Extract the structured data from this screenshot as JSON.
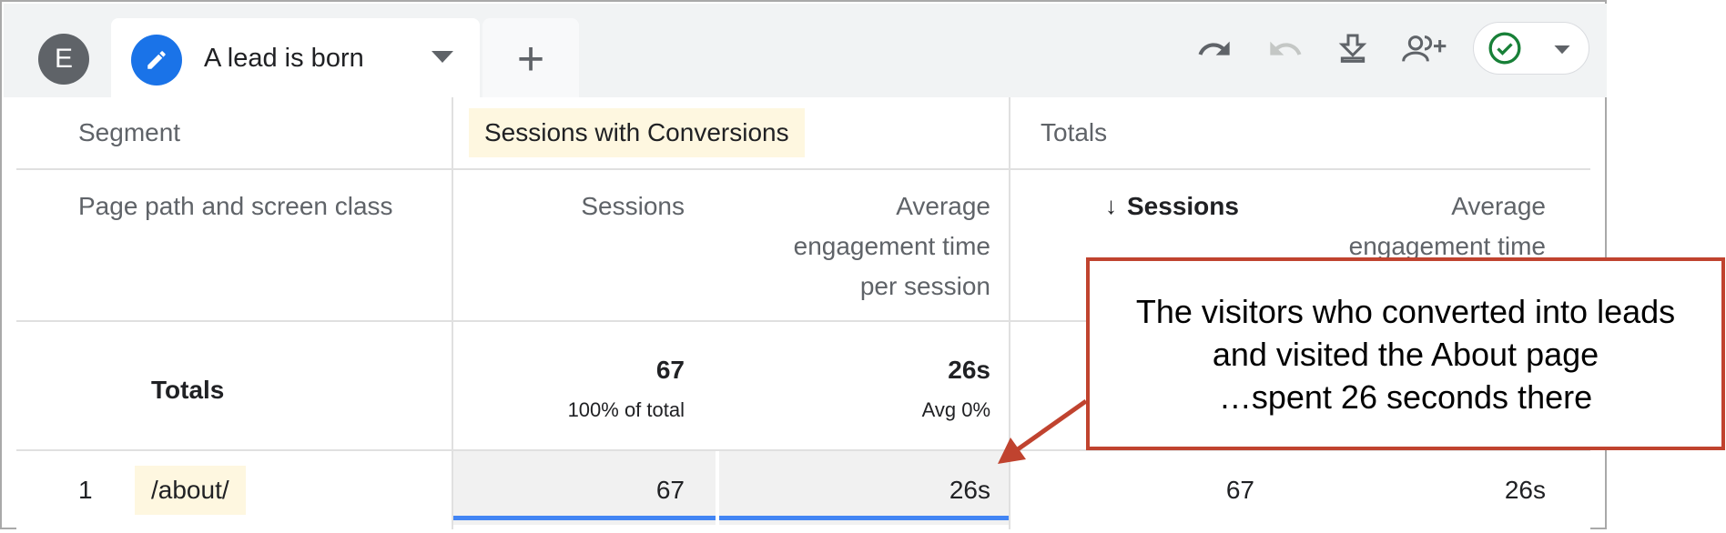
{
  "header": {
    "avatar_letter": "E",
    "active_tab_label": "A lead is born",
    "add_tab_symbol": "+"
  },
  "toolbar": {
    "icons": [
      "undo-icon",
      "redo-icon",
      "download-icon",
      "share-users-icon",
      "check-circle-icon",
      "chevron-down-icon"
    ]
  },
  "table": {
    "segment_label": "Segment",
    "dimension_label": "Page path and screen class",
    "groups": [
      {
        "label": "Sessions with Conversions",
        "highlighted": true
      },
      {
        "label": "Totals",
        "highlighted": false
      }
    ],
    "metrics": {
      "conv_sessions": "Sessions",
      "conv_avg_line1": "Average",
      "conv_avg_line2": "engagement time",
      "conv_avg_line3": "per session",
      "tot_sessions": "Sessions",
      "tot_sort_arrow": "↓",
      "tot_avg_line1": "Average",
      "tot_avg_line2": "engagement time"
    },
    "totals_row": {
      "label": "Totals",
      "conv_sessions": "67",
      "conv_sessions_sub": "100% of total",
      "conv_avg": "26s",
      "conv_avg_sub": "Avg 0%"
    },
    "rows": [
      {
        "index": "1",
        "path": "/about/",
        "conv_sessions": "67",
        "conv_avg": "26s",
        "tot_sessions": "67",
        "tot_avg": "26s",
        "bar_fraction": 1.0
      }
    ]
  },
  "annotation": {
    "text": "The visitors who converted into leads\nand visited the About page\n…spent 26 seconds there",
    "border_color": "#c0432f"
  },
  "colors": {
    "accent_blue": "#1a73e8",
    "highlight": "#fef7e0",
    "success_green": "#188038"
  }
}
